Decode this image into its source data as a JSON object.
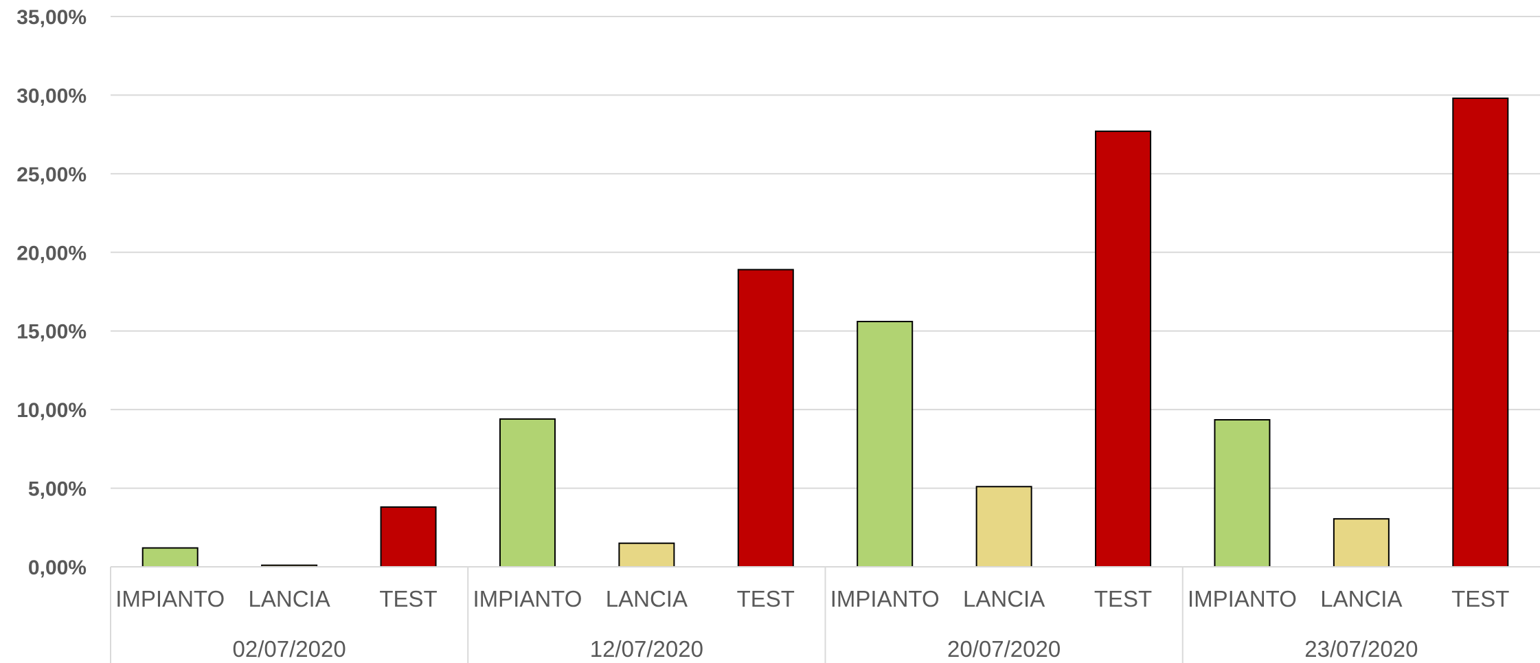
{
  "chart_data": {
    "type": "bar",
    "title": "",
    "xlabel": "",
    "ylabel": "",
    "ylim": [
      0,
      35
    ],
    "yticks": [
      "0,00%",
      "5,00%",
      "10,00%",
      "15,00%",
      "20,00%",
      "25,00%",
      "30,00%",
      "35,00%"
    ],
    "grid": true,
    "legend": "none",
    "groups": [
      {
        "label": "02/07/2020",
        "bars": [
          {
            "category": "IMPIANTO",
            "value": 1.2
          },
          {
            "category": "LANCIA",
            "value": 0.1
          },
          {
            "category": "TEST",
            "value": 3.8
          }
        ]
      },
      {
        "label": "12/07/2020",
        "bars": [
          {
            "category": "IMPIANTO",
            "value": 9.4
          },
          {
            "category": "LANCIA",
            "value": 1.5
          },
          {
            "category": "TEST",
            "value": 18.9
          }
        ]
      },
      {
        "label": "20/07/2020",
        "bars": [
          {
            "category": "IMPIANTO",
            "value": 15.6
          },
          {
            "category": "LANCIA",
            "value": 5.1
          },
          {
            "category": "TEST",
            "value": 27.7
          }
        ]
      },
      {
        "label": "23/07/2020",
        "bars": [
          {
            "category": "IMPIANTO",
            "value": 9.35
          },
          {
            "category": "LANCIA",
            "value": 3.05
          },
          {
            "category": "TEST",
            "value": 29.8
          }
        ]
      }
    ],
    "colors": {
      "IMPIANTO": "#b1d372",
      "LANCIA": "#e7d785",
      "TEST": "#c00000"
    }
  }
}
